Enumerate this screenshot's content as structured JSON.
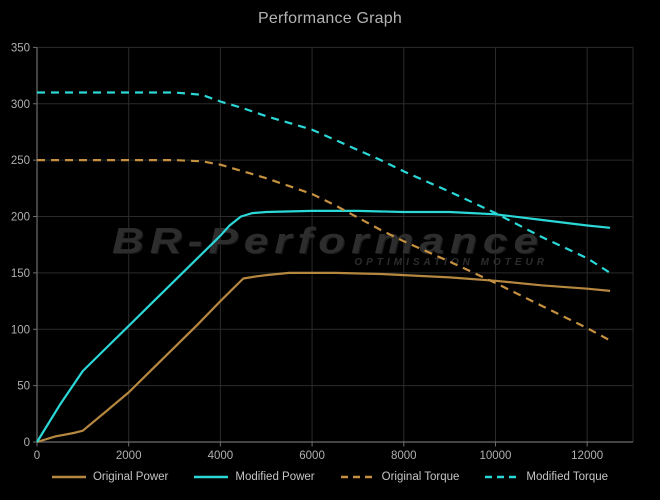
{
  "title": "Performance Graph",
  "watermark": {
    "line1": "BR-Performance",
    "line2": "OPTIMISATION MOTEUR"
  },
  "colors": {
    "background": "#000000",
    "grid": "#2b2b2b",
    "axis": "#6e6e6e",
    "tick_text": "#b0b0b0",
    "title_text": "#b3b3b3",
    "legend_text": "#c4c4c4",
    "watermark_text": "#2d2d2d",
    "power_original": "#b5873f",
    "power_modified": "#2bd8d8",
    "torque_original": "#c59140",
    "torque_modified": "#2bd8d8"
  },
  "chart_data": {
    "type": "line",
    "title": "Performance Graph",
    "xlabel": "",
    "ylabel": "",
    "xlim": [
      0,
      13000
    ],
    "ylim": [
      0,
      350
    ],
    "xticks": [
      0,
      2000,
      4000,
      6000,
      8000,
      10000,
      12000
    ],
    "yticks": [
      0,
      50,
      100,
      150,
      200,
      250,
      300,
      350
    ],
    "grid": true,
    "legend_position": "bottom",
    "series": [
      {
        "name": "Original Power",
        "style": "solid",
        "color": "#b5873f",
        "points": [
          [
            0,
            0
          ],
          [
            400,
            5
          ],
          [
            800,
            8
          ],
          [
            1000,
            10
          ],
          [
            1500,
            27
          ],
          [
            2000,
            44
          ],
          [
            2500,
            64
          ],
          [
            3000,
            84
          ],
          [
            3500,
            104
          ],
          [
            4000,
            125
          ],
          [
            4250,
            135
          ],
          [
            4500,
            145
          ],
          [
            4800,
            147
          ],
          [
            5000,
            148
          ],
          [
            5500,
            150
          ],
          [
            6500,
            150
          ],
          [
            7500,
            149
          ],
          [
            8000,
            148
          ],
          [
            9000,
            146
          ],
          [
            10000,
            143
          ],
          [
            11000,
            139
          ],
          [
            12000,
            136
          ],
          [
            12500,
            134
          ]
        ]
      },
      {
        "name": "Modified Power",
        "style": "solid",
        "color": "#2bd8d8",
        "points": [
          [
            0,
            0
          ],
          [
            500,
            33
          ],
          [
            1000,
            63
          ],
          [
            1500,
            83
          ],
          [
            2000,
            103
          ],
          [
            2500,
            123
          ],
          [
            3000,
            143
          ],
          [
            3500,
            163
          ],
          [
            4000,
            183
          ],
          [
            4200,
            192
          ],
          [
            4450,
            200
          ],
          [
            4700,
            203
          ],
          [
            5000,
            204
          ],
          [
            6000,
            205
          ],
          [
            7000,
            205
          ],
          [
            8000,
            204
          ],
          [
            9000,
            204
          ],
          [
            9500,
            203
          ],
          [
            10000,
            202
          ],
          [
            11000,
            197
          ],
          [
            12000,
            192
          ],
          [
            12500,
            190
          ]
        ]
      },
      {
        "name": "Original Torque",
        "style": "dashed",
        "color": "#c59140",
        "points": [
          [
            0,
            250
          ],
          [
            3000,
            250
          ],
          [
            3600,
            249
          ],
          [
            4000,
            246
          ],
          [
            4500,
            240
          ],
          [
            5000,
            234
          ],
          [
            5500,
            227
          ],
          [
            6000,
            220
          ],
          [
            6500,
            210
          ],
          [
            7000,
            199
          ],
          [
            7500,
            188
          ],
          [
            8000,
            178
          ],
          [
            9000,
            160
          ],
          [
            10000,
            141
          ],
          [
            11000,
            121
          ],
          [
            12000,
            101
          ],
          [
            12500,
            90
          ]
        ]
      },
      {
        "name": "Modified Torque",
        "style": "dashed",
        "color": "#2bd8d8",
        "points": [
          [
            0,
            310
          ],
          [
            3000,
            310
          ],
          [
            3600,
            308
          ],
          [
            4000,
            302
          ],
          [
            4500,
            296
          ],
          [
            5000,
            289
          ],
          [
            5500,
            283
          ],
          [
            6000,
            277
          ],
          [
            6500,
            268
          ],
          [
            7000,
            259
          ],
          [
            7500,
            250
          ],
          [
            8000,
            240
          ],
          [
            9000,
            222
          ],
          [
            10000,
            203
          ],
          [
            11000,
            182
          ],
          [
            12000,
            163
          ],
          [
            12500,
            150
          ]
        ]
      }
    ]
  }
}
